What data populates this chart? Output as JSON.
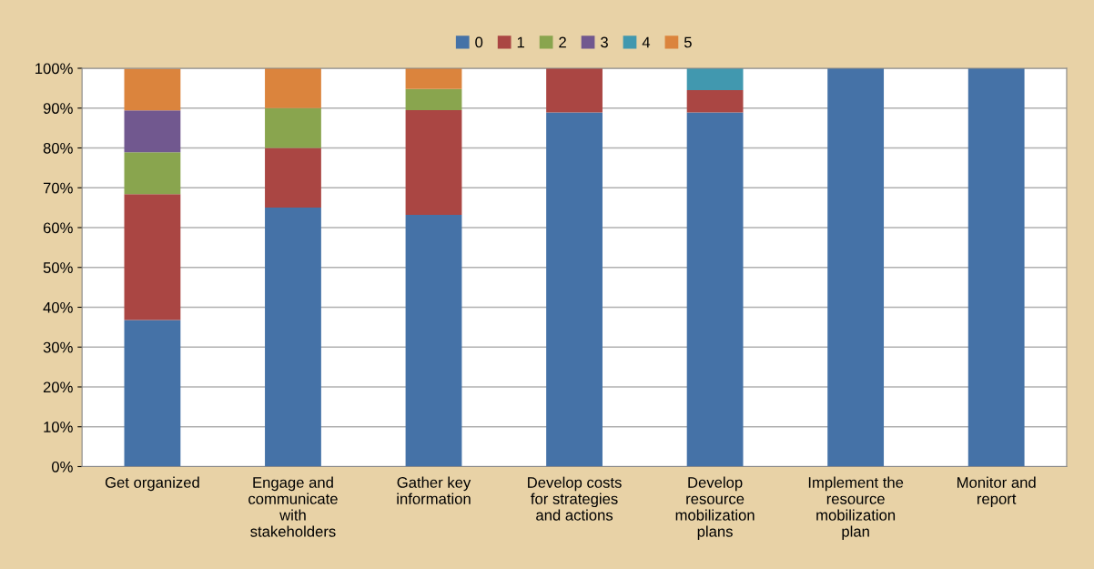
{
  "chart_data": {
    "type": "bar",
    "stacked": true,
    "categories": [
      "Get organized",
      "Engage and\ncommunicate\nwith\nstakeholders",
      "Gather key\ninformation",
      "Develop costs\nfor strategies\nand actions",
      "Develop\nresource\nmobilization\nplans",
      "Implement the\nresource\nmobilization\nplan",
      "Monitor and\nreport"
    ],
    "series": [
      {
        "name": "0",
        "color": "#4572a7",
        "values": [
          36.8,
          65,
          63.2,
          88.9,
          88.9,
          100,
          100
        ]
      },
      {
        "name": "1",
        "color": "#aa4643",
        "values": [
          31.6,
          15,
          26.3,
          11.1,
          5.6,
          null,
          null
        ]
      },
      {
        "name": "2",
        "color": "#89a54e",
        "values": [
          10.5,
          10,
          5.3,
          null,
          null,
          null,
          null
        ]
      },
      {
        "name": "3",
        "color": "#71588f",
        "values": [
          10.5,
          null,
          null,
          null,
          null,
          null,
          null
        ]
      },
      {
        "name": "4",
        "color": "#4198af",
        "values": [
          null,
          null,
          null,
          null,
          5.6,
          null,
          null
        ]
      },
      {
        "name": "5",
        "color": "#db843d",
        "values": [
          10.5,
          10,
          5.3,
          null,
          null,
          null,
          null
        ]
      }
    ],
    "ylim": [
      0,
      100
    ],
    "yticks": [
      {
        "value": 0,
        "label": "0%"
      },
      {
        "value": 10,
        "label": "10%"
      },
      {
        "value": 20,
        "label": "20%"
      },
      {
        "value": 30,
        "label": "30%"
      },
      {
        "value": 40,
        "label": "40%"
      },
      {
        "value": 50,
        "label": "50%"
      },
      {
        "value": 60,
        "label": "60%"
      },
      {
        "value": 70,
        "label": "70%"
      },
      {
        "value": 80,
        "label": "80%"
      },
      {
        "value": 90,
        "label": "90%"
      },
      {
        "value": 100,
        "label": "100%"
      }
    ],
    "grid": "y",
    "legend": "top"
  }
}
